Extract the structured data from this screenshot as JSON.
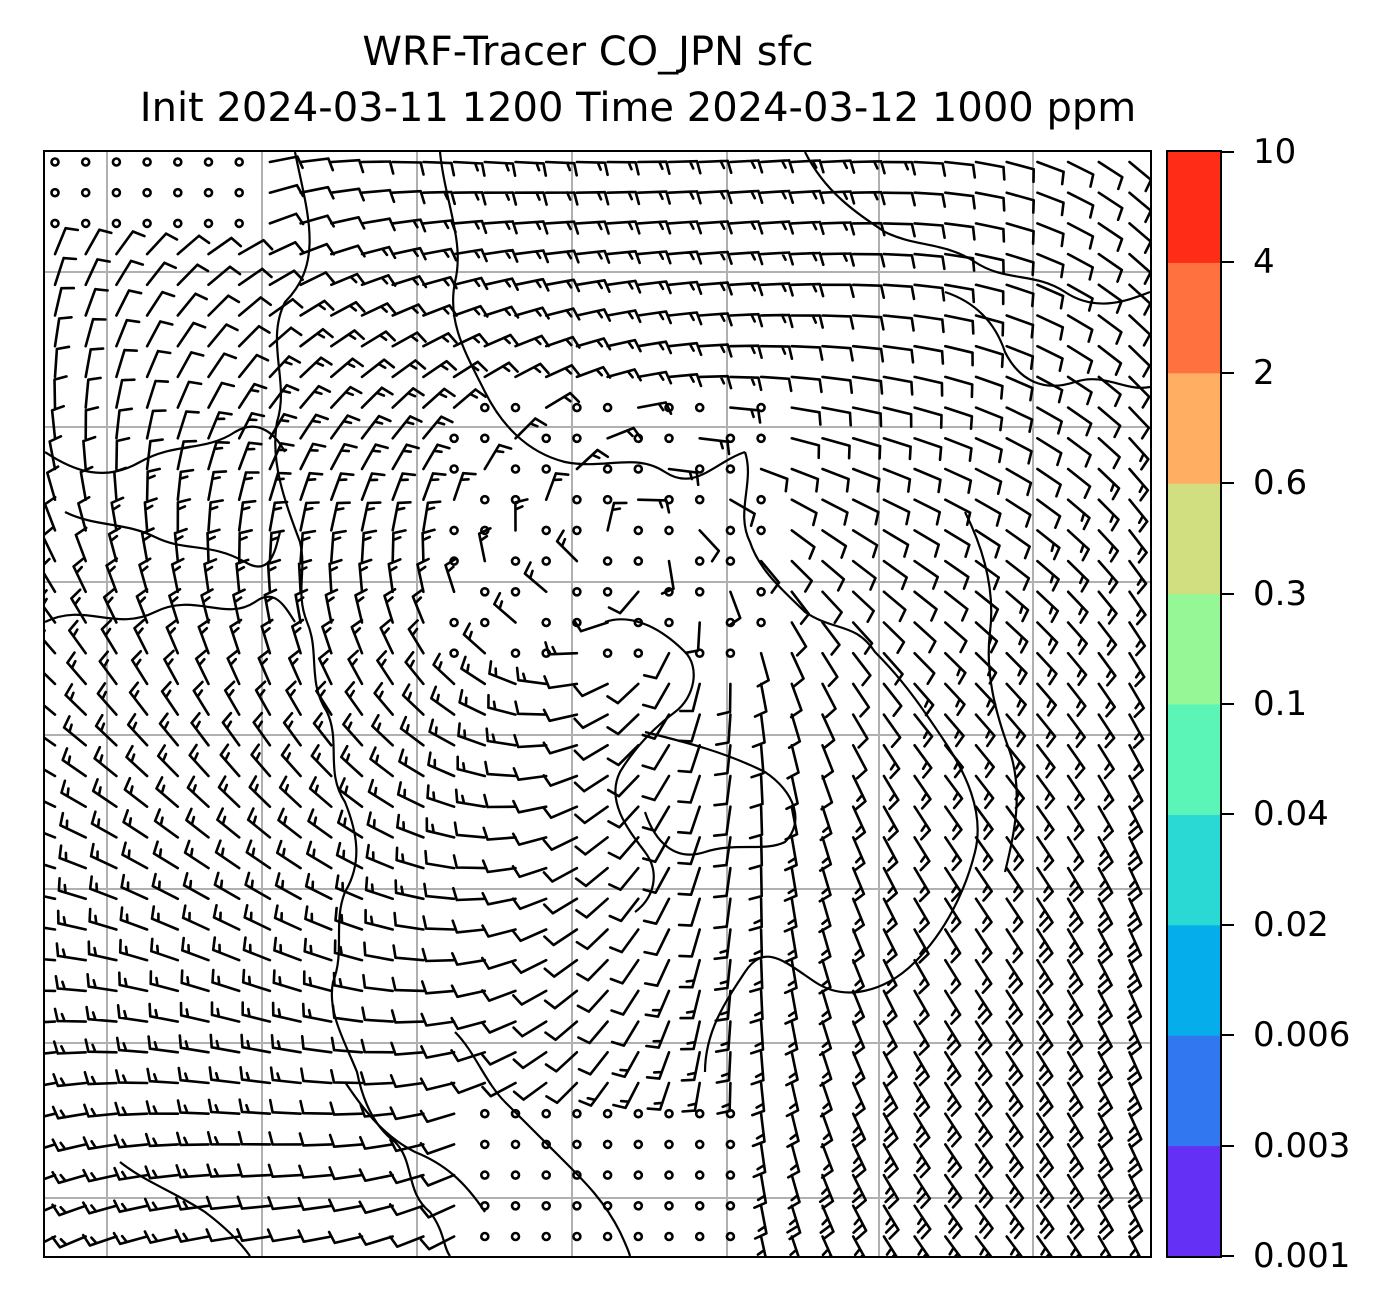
{
  "title": {
    "line1": "WRF-Tracer CO_JPN sfc",
    "line2": "Init 2024-03-11 1200 Time 2024-03-12 1000 ppm"
  },
  "map": {
    "gridlines": true,
    "gridline_color": "#b0b0b0",
    "coastline_color": "#000000",
    "wind_symbol": "wind-barbs",
    "calm_symbol": "open-circle"
  },
  "colorbar": {
    "label": "",
    "levels": [
      "0.001",
      "0.003",
      "0.006",
      "0.02",
      "0.04",
      "0.1",
      "0.3",
      "0.6",
      "2",
      "4",
      "10"
    ],
    "colors": [
      "#6530f5",
      "#3177ef",
      "#05aeea",
      "#2ad9d4",
      "#5bf5b7",
      "#95f795",
      "#d1df81",
      "#ffae62",
      "#ff713e",
      "#ff2c17"
    ]
  }
}
